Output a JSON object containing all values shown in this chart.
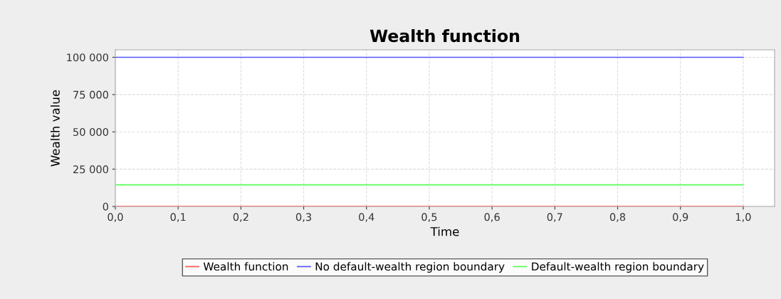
{
  "chart_data": {
    "type": "line",
    "title": "Wealth function",
    "xlabel": "Time",
    "ylabel": "Wealth value",
    "x": [
      0,
      1
    ],
    "series": [
      {
        "name": "Wealth function",
        "color": "#ff5555",
        "values": [
          0,
          0
        ]
      },
      {
        "name": "No default-wealth region boundary",
        "color": "#5555ff",
        "values": [
          100000,
          100000
        ]
      },
      {
        "name": "Default-wealth region boundary",
        "color": "#55ff55",
        "values": [
          14500,
          14500
        ]
      }
    ],
    "xlim": [
      0,
      1.05
    ],
    "ylim": [
      0,
      105000
    ],
    "xticks": [
      {
        "value": 0,
        "label": "0,0"
      },
      {
        "value": 0.1,
        "label": "0,1"
      },
      {
        "value": 0.2,
        "label": "0,2"
      },
      {
        "value": 0.3,
        "label": "0,3"
      },
      {
        "value": 0.4,
        "label": "0,4"
      },
      {
        "value": 0.5,
        "label": "0,5"
      },
      {
        "value": 0.6,
        "label": "0,6"
      },
      {
        "value": 0.7,
        "label": "0,7"
      },
      {
        "value": 0.8,
        "label": "0,8"
      },
      {
        "value": 0.9,
        "label": "0,9"
      },
      {
        "value": 1.0,
        "label": "1,0"
      }
    ],
    "yticks": [
      0,
      {
        "value": 25000,
        "label": "25 000"
      },
      {
        "value": 50000,
        "label": "50 000"
      },
      {
        "value": 75000,
        "label": "75 000"
      },
      {
        "value": 100000,
        "label": "100 000"
      }
    ],
    "grid": true,
    "legend": "bottom",
    "marker": "none",
    "line_style": "solid"
  }
}
